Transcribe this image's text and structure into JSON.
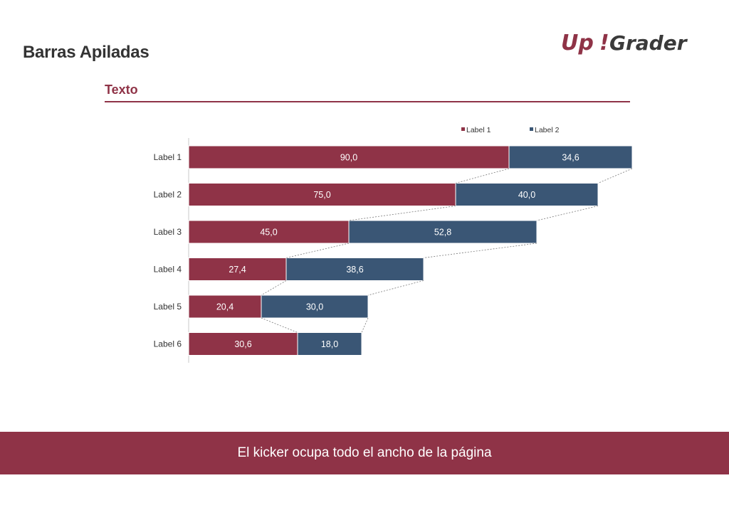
{
  "page": {
    "title": "Barras Apiladas",
    "section_heading": "Texto",
    "kicker": "El kicker ocupa todo el ancho de la página",
    "logo_text_left": "Up",
    "logo_text_mark": "!",
    "logo_text_right": "Grader"
  },
  "colors": {
    "brand": "#8f3347",
    "series1": "#8f3347",
    "series2": "#3a5675",
    "text": "#333333"
  },
  "chart_data": {
    "type": "bar",
    "orientation": "horizontal",
    "stacked": true,
    "categories": [
      "Label 1",
      "Label 2",
      "Label 3",
      "Label 4",
      "Label 5",
      "Label 6"
    ],
    "series": [
      {
        "name": "Label 1",
        "values": [
          90.0,
          75.0,
          45.0,
          27.4,
          20.4,
          30.6
        ],
        "labels": [
          "90,0",
          "75,0",
          "45,0",
          "27,4",
          "20,4",
          "30,6"
        ]
      },
      {
        "name": "Label 2",
        "values": [
          34.6,
          40.0,
          52.8,
          38.6,
          30.0,
          18.0
        ],
        "labels": [
          "34,6",
          "40,0",
          "52,8",
          "38,6",
          "30,0",
          "18,0"
        ]
      }
    ],
    "xlim": [
      0,
      130
    ],
    "series_lines": true,
    "grid": false,
    "legend": "top-right"
  }
}
